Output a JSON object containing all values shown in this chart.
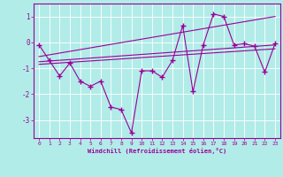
{
  "xlabel": "Windchill (Refroidissement éolien,°C)",
  "bg_color": "#b2ece8",
  "line_color": "#990099",
  "grid_color": "#ffffff",
  "xlim": [
    -0.5,
    23.5
  ],
  "ylim": [
    -3.7,
    1.5
  ],
  "xticks": [
    0,
    1,
    2,
    3,
    4,
    5,
    6,
    7,
    8,
    9,
    10,
    11,
    12,
    13,
    14,
    15,
    16,
    17,
    18,
    19,
    20,
    21,
    22,
    23
  ],
  "yticks": [
    -3,
    -2,
    -1,
    0,
    1
  ],
  "series_main_x": [
    0,
    1,
    2,
    3,
    4,
    5,
    6,
    7,
    8,
    9,
    10,
    11,
    12,
    13,
    14,
    15,
    16,
    17,
    18,
    19,
    20,
    21,
    22,
    23
  ],
  "series_main_y": [
    -0.1,
    -0.7,
    -1.3,
    -0.8,
    -1.5,
    -1.7,
    -1.5,
    -2.5,
    -2.6,
    -3.5,
    -1.1,
    -1.1,
    -1.35,
    -0.7,
    0.65,
    -1.9,
    -0.1,
    1.1,
    1.0,
    -0.1,
    -0.05,
    -0.15,
    -1.15,
    -0.05
  ],
  "trend1_x": [
    0,
    23
  ],
  "trend1_y": [
    -0.85,
    -0.25
  ],
  "trend2_x": [
    0,
    23
  ],
  "trend2_y": [
    -0.75,
    -0.1
  ],
  "trend3_x": [
    0,
    23
  ],
  "trend3_y": [
    -0.55,
    1.0
  ]
}
